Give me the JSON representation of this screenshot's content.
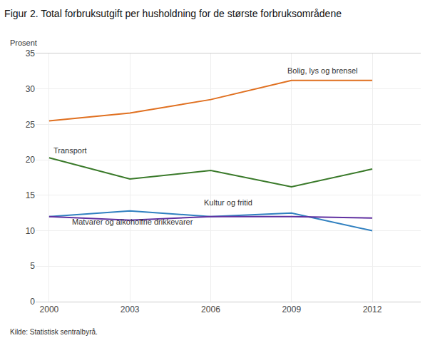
{
  "chart_data": {
    "type": "line",
    "title": "Figur 2. Total forbruksutgift per husholdning for de største forbruksområdene",
    "ylabel": "Prosent",
    "source": "Kilde: Statistisk sentralbyrå.",
    "x": [
      2000,
      2003,
      2006,
      2009,
      2012
    ],
    "series": [
      {
        "name": "Bolig, lys og brensel",
        "color": "#E07020",
        "values": [
          25.5,
          26.6,
          28.5,
          31.2,
          31.2
        ]
      },
      {
        "name": "Transport",
        "color": "#3A7A2A",
        "values": [
          20.3,
          17.3,
          18.5,
          16.2,
          18.7
        ]
      },
      {
        "name": "Kultur og fritid",
        "color": "#3080C0",
        "values": [
          12.0,
          12.8,
          12.0,
          12.5,
          10.0
        ]
      },
      {
        "name": "Matvarer og alkoholfrie drikkevarer",
        "color": "#6030A0",
        "values": [
          12.0,
          11.5,
          12.0,
          12.0,
          11.8
        ]
      }
    ],
    "annotations": [
      {
        "text": "Bolig, lys og brensel",
        "x": 2008.8,
        "y": 31.8
      },
      {
        "text": "Transport",
        "x": 2000.1,
        "y": 20.5
      },
      {
        "text": "Kultur og fritid",
        "x": 2005.7,
        "y": 13.2
      },
      {
        "text": "Matvarer og alkoholfrie drikkevarer",
        "x": 2000.8,
        "y": 10.5
      }
    ],
    "xlim": [
      1999.5,
      2013.8
    ],
    "ylim": [
      0,
      35
    ],
    "xticks": [
      2000,
      2003,
      2006,
      2009,
      2012
    ],
    "yticks": [
      0,
      5,
      10,
      15,
      20,
      25,
      30,
      35
    ],
    "grid": true
  }
}
